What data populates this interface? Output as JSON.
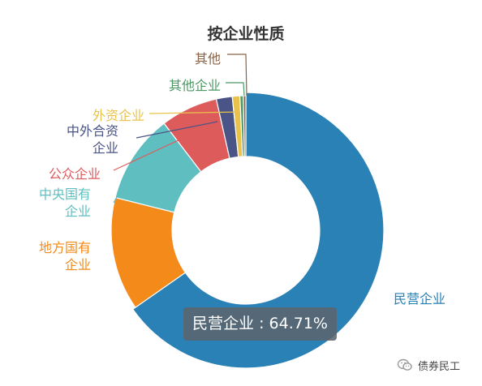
{
  "chart_data": {
    "type": "pie",
    "variant": "donut",
    "title": "按企业性质",
    "slices": [
      {
        "label": "民营企业",
        "value": 64.71,
        "color": "#2a81b5",
        "label_lines": [
          "民营企业"
        ]
      },
      {
        "label": "地方国有企业",
        "value": 13.5,
        "color": "#f38a1a",
        "label_lines": [
          "地方国有",
          "企业"
        ]
      },
      {
        "label": "中央国有企业",
        "value": 10.6,
        "color": "#5fbebf",
        "label_lines": [
          "中央国有",
          "企业"
        ]
      },
      {
        "label": "公众企业",
        "value": 6.8,
        "color": "#de5b5c",
        "label_lines": [
          "公众企业"
        ]
      },
      {
        "label": "中外合资企业",
        "value": 1.9,
        "color": "#4b5486",
        "label_lines": [
          "中外合资",
          "企业"
        ]
      },
      {
        "label": "外资企业",
        "value": 0.9,
        "color": "#e9c24b",
        "label_lines": [
          "外资企业"
        ]
      },
      {
        "label": "其他企业",
        "value": 0.4,
        "color": "#4b9a64",
        "label_lines": [
          "其他企业"
        ]
      },
      {
        "label": "其他",
        "value": 0.3,
        "color": "#8a6245",
        "label_lines": [
          "其他"
        ]
      }
    ],
    "start_angle_deg": 0,
    "direction": "clockwise"
  },
  "tooltip": {
    "text": "民营企业 : 64.71%"
  },
  "watermark": {
    "text": "债券民工",
    "icon": "wechat-icon"
  }
}
